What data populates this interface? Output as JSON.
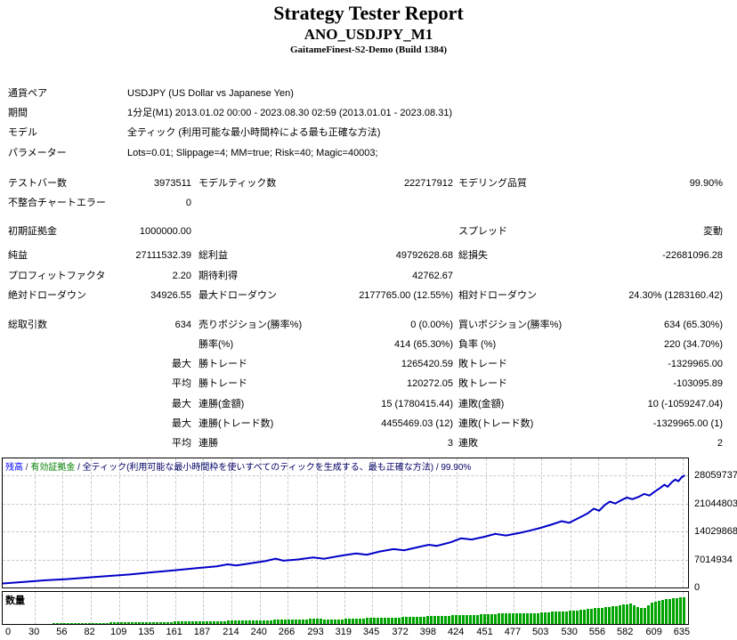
{
  "header": {
    "title": "Strategy Tester Report",
    "symbol": "ANO_USDJPY_M1",
    "server": "GaitameFinest-S2-Demo (Build 1384)"
  },
  "table": {
    "rows": [
      {
        "label": "通貨ペア",
        "span": "USDJPY (US Dollar vs Japanese Yen)"
      },
      {
        "label": "期間",
        "span": "1分足(M1) 2013.01.02 00:00 - 2023.08.30 02:59 (2013.01.01 - 2023.08.31)"
      },
      {
        "label": "モデル",
        "span": "全ティック (利用可能な最小時間枠による最も正確な方法)"
      },
      {
        "label": "パラメーター",
        "span": "Lots=0.01; Slippage=4; MM=true; Risk=40; Magic=40003;",
        "gap": 12
      },
      {
        "cells": [
          "テストバー数",
          "3973511",
          "モデルティック数",
          "222717912",
          "モデリング品質",
          "99.90%"
        ]
      },
      {
        "cells": [
          "不整合チャートエラー",
          "0",
          "",
          "",
          "",
          ""
        ],
        "gap": 10
      },
      {
        "cells": [
          "初期証拠金",
          "1000000.00",
          "",
          "",
          "スプレッド",
          "変動"
        ],
        "gap": 5
      },
      {
        "cells": [
          "純益",
          "27111532.39",
          "総利益",
          "49792628.68",
          "総損失",
          "-22681096.28"
        ]
      },
      {
        "cells": [
          "プロフィットファクタ",
          "2.20",
          "期待利得",
          "42762.67",
          "",
          ""
        ]
      },
      {
        "cells": [
          "絶対ドローダウン",
          "34926.55",
          "最大ドローダウン",
          "2177765.00 (12.55%)",
          "相対ドローダウン",
          "24.30% (1283160.42)"
        ],
        "gap": 11
      },
      {
        "cells": [
          "総取引数",
          "634",
          "売りポジション(勝率%)",
          "0 (0.00%)",
          "買いポジション(勝率%)",
          "634 (65.30%)"
        ]
      },
      {
        "cells": [
          "",
          "",
          "勝率(%)",
          "414 (65.30%)",
          "負率 (%)",
          "220 (34.70%)"
        ]
      },
      {
        "cells": [
          "",
          "最大",
          "勝トレード",
          "1265420.59",
          "敗トレード",
          "-1329965.00"
        ]
      },
      {
        "cells": [
          "",
          "平均",
          "勝トレード",
          "120272.05",
          "敗トレード",
          "-103095.89"
        ]
      },
      {
        "cells": [
          "",
          "最大",
          "連勝(金額)",
          "15 (1780415.44)",
          "連敗(金額)",
          "10 (-1059247.04)"
        ]
      },
      {
        "cells": [
          "",
          "最大",
          "連勝(トレード数)",
          "4455469.03 (12)",
          "連敗(トレード数)",
          "-1329965.00 (1)"
        ]
      },
      {
        "cells": [
          "",
          "平均",
          "連勝",
          "3",
          "連敗",
          "2"
        ]
      }
    ]
  },
  "chart_data": {
    "type": "line",
    "legend_segments": [
      {
        "text": "残高",
        "color": "#0000ff"
      },
      {
        "text": " / ",
        "color": "#333333"
      },
      {
        "text": "有効証拠金",
        "color": "#008000"
      },
      {
        "text": " / 全ティック(利用可能な最小時間枠を使いすべてのティックを生成する、最も正確な方法) / 99.90%",
        "color": "#000066"
      }
    ],
    "volume_label": "数量",
    "line_color": "#0000c8",
    "volume_color": "#00a400",
    "grid_color": "#c9c9c9",
    "y_ticks": [
      28059737,
      21044803,
      14029868,
      7014934,
      0
    ],
    "x_ticks": [
      0,
      30,
      56,
      82,
      109,
      135,
      161,
      187,
      214,
      240,
      266,
      293,
      319,
      345,
      372,
      398,
      424,
      451,
      477,
      503,
      530,
      556,
      582,
      609,
      635
    ],
    "x_max": 640,
    "y_max_label": 28059737,
    "balance_series": [
      [
        0,
        1000000
      ],
      [
        20,
        1400000
      ],
      [
        40,
        1800000
      ],
      [
        60,
        2100000
      ],
      [
        80,
        2500000
      ],
      [
        100,
        2900000
      ],
      [
        120,
        3300000
      ],
      [
        140,
        3800000
      ],
      [
        160,
        4300000
      ],
      [
        180,
        4800000
      ],
      [
        200,
        5300000
      ],
      [
        210,
        5800000
      ],
      [
        218,
        5500000
      ],
      [
        230,
        6000000
      ],
      [
        245,
        6600000
      ],
      [
        255,
        7200000
      ],
      [
        262,
        6700000
      ],
      [
        275,
        7000000
      ],
      [
        290,
        7500000
      ],
      [
        300,
        7200000
      ],
      [
        315,
        7900000
      ],
      [
        330,
        8500000
      ],
      [
        340,
        8200000
      ],
      [
        352,
        9000000
      ],
      [
        365,
        9600000
      ],
      [
        375,
        9300000
      ],
      [
        388,
        10100000
      ],
      [
        398,
        10700000
      ],
      [
        405,
        10400000
      ],
      [
        418,
        11300000
      ],
      [
        428,
        12300000
      ],
      [
        438,
        12000000
      ],
      [
        450,
        12700000
      ],
      [
        460,
        13400000
      ],
      [
        470,
        13000000
      ],
      [
        482,
        13600000
      ],
      [
        492,
        14200000
      ],
      [
        502,
        14900000
      ],
      [
        512,
        15700000
      ],
      [
        522,
        16600000
      ],
      [
        529,
        16200000
      ],
      [
        538,
        17400000
      ],
      [
        546,
        18500000
      ],
      [
        552,
        19700000
      ],
      [
        557,
        19200000
      ],
      [
        562,
        20600000
      ],
      [
        567,
        21500000
      ],
      [
        572,
        21000000
      ],
      [
        578,
        21900000
      ],
      [
        583,
        22500000
      ],
      [
        588,
        22100000
      ],
      [
        594,
        22700000
      ],
      [
        599,
        23400000
      ],
      [
        604,
        23000000
      ],
      [
        609,
        24000000
      ],
      [
        614,
        24900000
      ],
      [
        618,
        25700000
      ],
      [
        621,
        25200000
      ],
      [
        625,
        26400000
      ],
      [
        628,
        27000000
      ],
      [
        631,
        26600000
      ],
      [
        634,
        27600000
      ],
      [
        637,
        28059737
      ]
    ],
    "volume_profile": [
      [
        0,
        0
      ],
      [
        30,
        0.02
      ],
      [
        60,
        0.03
      ],
      [
        100,
        0.05
      ],
      [
        140,
        0.07
      ],
      [
        180,
        0.09
      ],
      [
        220,
        0.12
      ],
      [
        260,
        0.15
      ],
      [
        290,
        0.18
      ],
      [
        310,
        0.16
      ],
      [
        330,
        0.2
      ],
      [
        360,
        0.22
      ],
      [
        390,
        0.26
      ],
      [
        420,
        0.3
      ],
      [
        450,
        0.34
      ],
      [
        470,
        0.38
      ],
      [
        490,
        0.36
      ],
      [
        510,
        0.42
      ],
      [
        530,
        0.46
      ],
      [
        550,
        0.55
      ],
      [
        565,
        0.6
      ],
      [
        575,
        0.65
      ],
      [
        585,
        0.72
      ],
      [
        592,
        0.6
      ],
      [
        598,
        0.55
      ],
      [
        605,
        0.75
      ],
      [
        612,
        0.82
      ],
      [
        620,
        0.88
      ],
      [
        628,
        0.92
      ],
      [
        636,
        0.95
      ]
    ]
  }
}
